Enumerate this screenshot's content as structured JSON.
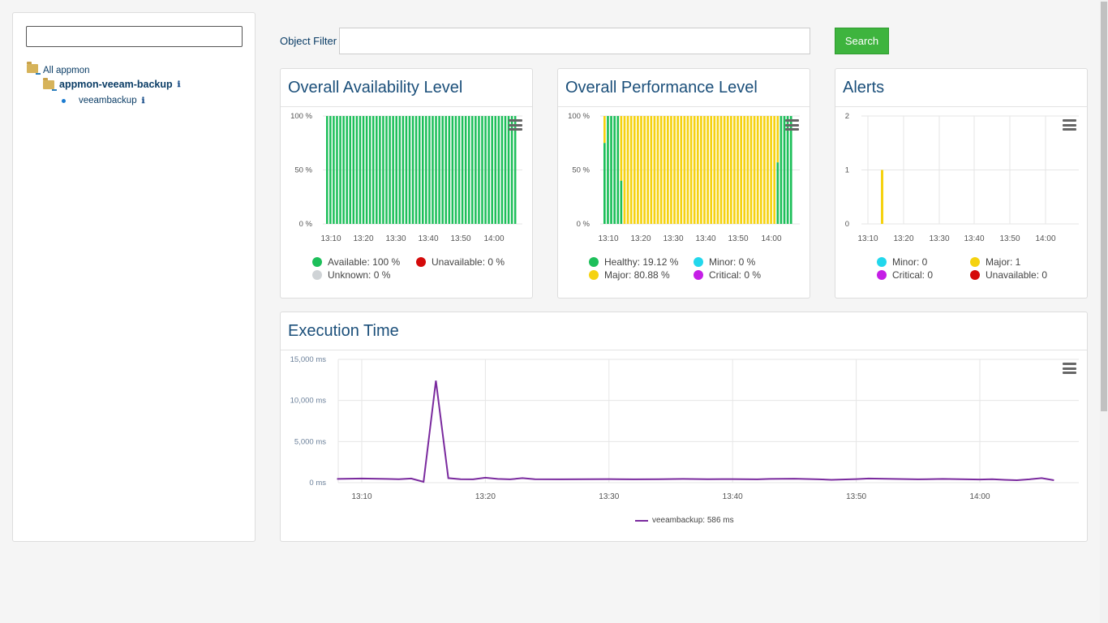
{
  "sidebar": {
    "search_value": "",
    "tree": [
      {
        "label": "All appmon",
        "icon": "folder-icon"
      },
      {
        "label": "appmon-veeam-backup",
        "icon": "folder-icon",
        "info": "ℹ"
      },
      {
        "label": "veeambackup",
        "icon": "dot-icon",
        "info": "ℹ"
      }
    ]
  },
  "filter": {
    "label": "Object Filter",
    "value": "",
    "search_label": "Search"
  },
  "colors": {
    "green": "#1dbf5a",
    "yellow": "#f5d20f",
    "red": "#d40a0a",
    "grey": "#cfd3d6",
    "cyan": "#22d7ec",
    "purple": "#c51ee6",
    "line": "#7a2a9e",
    "accent": "#3eb43e"
  },
  "cards": {
    "availability": {
      "title": "Overall Availability Level",
      "legend": [
        {
          "label": "Available: 100 %",
          "color": "#1dbf5a"
        },
        {
          "label": "Unavailable: 0 %",
          "color": "#d40a0a"
        },
        {
          "label": "Unknown: 0 %",
          "color": "#cfd3d6"
        }
      ]
    },
    "performance": {
      "title": "Overall Performance Level",
      "legend": [
        {
          "label": "Healthy: 19.12 %",
          "color": "#1dbf5a"
        },
        {
          "label": "Minor: 0 %",
          "color": "#22d7ec"
        },
        {
          "label": "Major: 80.88 %",
          "color": "#f5d20f"
        },
        {
          "label": "Critical: 0 %",
          "color": "#c51ee6"
        }
      ]
    },
    "alerts": {
      "title": "Alerts",
      "legend": [
        {
          "label": "Minor: 0",
          "color": "#22d7ec"
        },
        {
          "label": "Major: 1",
          "color": "#f5d20f"
        },
        {
          "label": "Critical: 0",
          "color": "#c51ee6"
        },
        {
          "label": "Unavailable: 0",
          "color": "#d40a0a"
        }
      ]
    },
    "execution": {
      "title": "Execution Time",
      "legend": [
        {
          "label": "veeambackup: 586 ms",
          "color": "#7a2a9e"
        }
      ]
    }
  },
  "chart_data": [
    {
      "type": "bar",
      "id": "availability",
      "stacked": "percent",
      "x_ticks": [
        "13:10",
        "13:20",
        "13:30",
        "13:40",
        "13:50",
        "14:00"
      ],
      "y_ticks": [
        "0 %",
        "50 %",
        "100 %"
      ],
      "ylim": [
        0,
        100
      ],
      "bars": 58,
      "series": [
        {
          "name": "Available",
          "value_each": 100
        }
      ]
    },
    {
      "type": "bar",
      "id": "performance",
      "stacked": "percent",
      "x_ticks": [
        "13:10",
        "13:20",
        "13:30",
        "13:40",
        "13:50",
        "14:00"
      ],
      "y_ticks": [
        "0 %",
        "50 %",
        "100 %"
      ],
      "ylim": [
        0,
        100
      ],
      "healthy_pct": [
        75,
        100,
        100,
        100,
        100,
        40,
        0,
        0,
        0,
        0,
        0,
        0,
        0,
        0,
        0,
        0,
        0,
        0,
        0,
        0,
        0,
        0,
        0,
        0,
        0,
        0,
        0,
        0,
        0,
        0,
        0,
        0,
        0,
        0,
        0,
        0,
        0,
        0,
        0,
        0,
        0,
        0,
        0,
        0,
        0,
        0,
        0,
        0,
        0,
        0,
        0,
        0,
        57,
        100,
        100,
        100,
        100
      ]
    },
    {
      "type": "bar",
      "id": "alerts",
      "x_ticks": [
        "13:10",
        "13:20",
        "13:30",
        "13:40",
        "13:50",
        "14:00"
      ],
      "y_ticks": [
        "0",
        "1",
        "2"
      ],
      "ylim": [
        0,
        2
      ],
      "bars": [
        {
          "x": "13:14",
          "series": "Major",
          "value": 1
        }
      ]
    },
    {
      "type": "line",
      "id": "execution",
      "x_ticks": [
        "13:10",
        "13:20",
        "13:30",
        "13:40",
        "13:50",
        "14:00"
      ],
      "y_ticks": [
        "0 ms",
        "5,000 ms",
        "10,000 ms",
        "15,000 ms"
      ],
      "ylim": [
        0,
        15000
      ],
      "xlim": [
        "13:08",
        "14:08"
      ],
      "series": [
        {
          "name": "veeambackup",
          "points": [
            [
              "13:08",
              450
            ],
            [
              "13:10",
              500
            ],
            [
              "13:12",
              450
            ],
            [
              "13:13",
              420
            ],
            [
              "13:14",
              500
            ],
            [
              "13:15",
              100
            ],
            [
              "13:16",
              12400
            ],
            [
              "13:17",
              550
            ],
            [
              "13:18",
              420
            ],
            [
              "13:19",
              400
            ],
            [
              "13:20",
              600
            ],
            [
              "13:21",
              450
            ],
            [
              "13:22",
              400
            ],
            [
              "13:23",
              550
            ],
            [
              "13:24",
              420
            ],
            [
              "13:26",
              400
            ],
            [
              "13:28",
              420
            ],
            [
              "13:30",
              430
            ],
            [
              "13:32",
              400
            ],
            [
              "13:34",
              420
            ],
            [
              "13:36",
              450
            ],
            [
              "13:38",
              420
            ],
            [
              "13:40",
              430
            ],
            [
              "13:42",
              400
            ],
            [
              "13:43",
              450
            ],
            [
              "13:45",
              480
            ],
            [
              "13:47",
              400
            ],
            [
              "13:48",
              350
            ],
            [
              "13:50",
              430
            ],
            [
              "13:51",
              500
            ],
            [
              "13:53",
              450
            ],
            [
              "13:55",
              400
            ],
            [
              "13:57",
              450
            ],
            [
              "13:59",
              400
            ],
            [
              "14:00",
              380
            ],
            [
              "14:01",
              420
            ],
            [
              "14:02",
              350
            ],
            [
              "14:03",
              300
            ],
            [
              "14:04",
              400
            ],
            [
              "14:05",
              550
            ],
            [
              "14:06",
              300
            ]
          ]
        }
      ]
    }
  ]
}
